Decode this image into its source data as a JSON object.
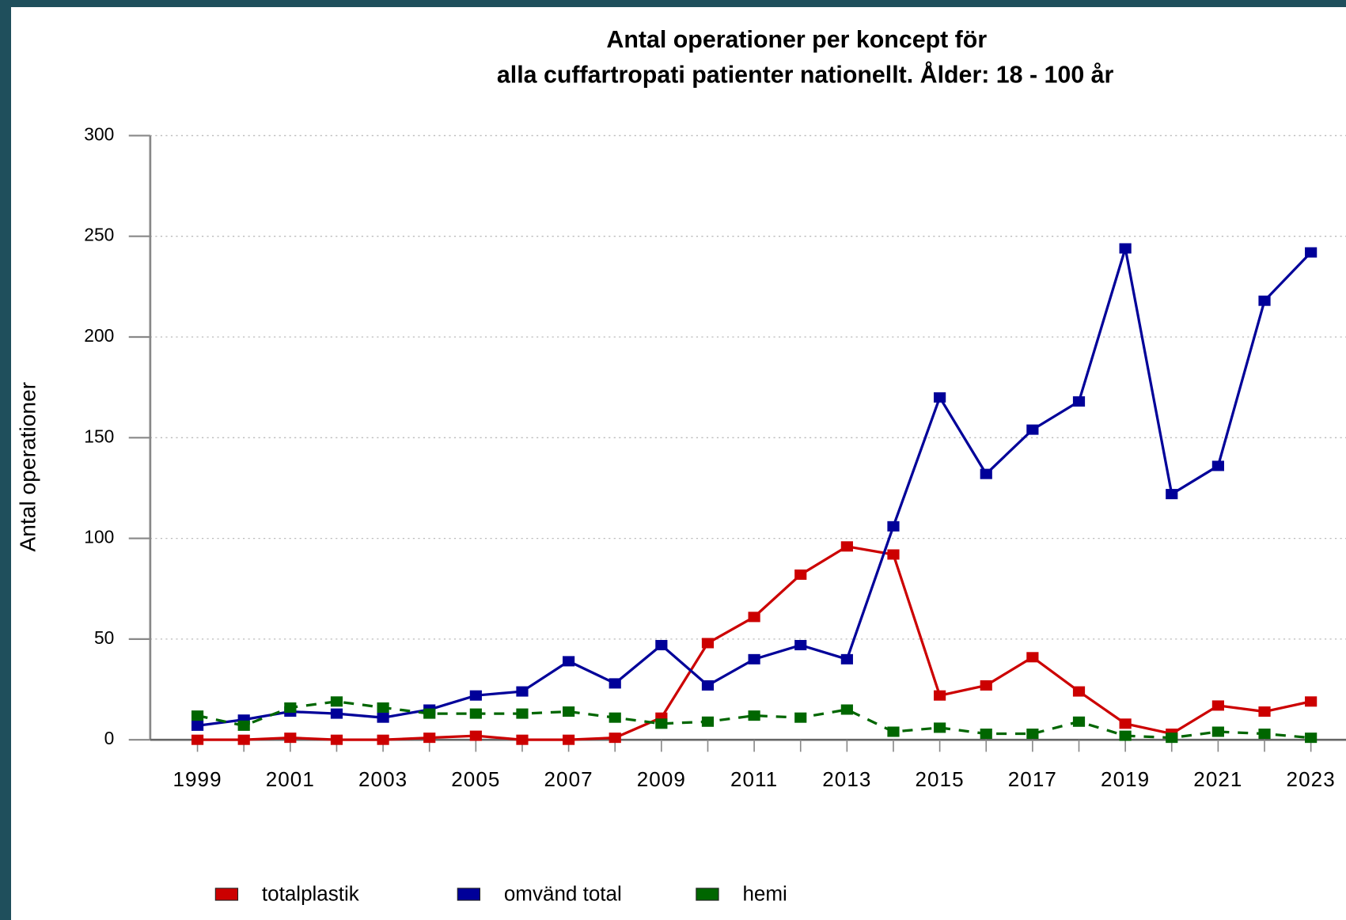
{
  "chart_data": {
    "type": "line",
    "title": "Antal operationer per koncept för",
    "subtitle": "alla cuffartropati patienter nationellt. Ålder: 18 - 100 år",
    "y_label": "Antal operationer",
    "x": [
      1999,
      2000,
      2001,
      2002,
      2003,
      2004,
      2005,
      2006,
      2007,
      2008,
      2009,
      2010,
      2011,
      2012,
      2013,
      2014,
      2015,
      2016,
      2017,
      2018,
      2019,
      2020,
      2021,
      2022,
      2023
    ],
    "series": [
      {
        "name": "totalplastik",
        "color": "#cc0000",
        "values": [
          0,
          0,
          1,
          0,
          0,
          1,
          2,
          0,
          0,
          1,
          11,
          48,
          61,
          82,
          96,
          92,
          22,
          27,
          41,
          24,
          8,
          3,
          17,
          14,
          19
        ]
      },
      {
        "name": "omvänd total",
        "color": "#000099",
        "values": [
          7,
          10,
          14,
          13,
          11,
          15,
          22,
          24,
          39,
          28,
          47,
          27,
          40,
          47,
          40,
          106,
          170,
          132,
          154,
          168,
          244,
          122,
          136,
          218,
          242
        ]
      },
      {
        "name": "hemi",
        "color": "#006600",
        "values": [
          12,
          7,
          16,
          19,
          16,
          13,
          13,
          13,
          14,
          11,
          8,
          9,
          12,
          11,
          15,
          4,
          6,
          3,
          3,
          9,
          2,
          1,
          4,
          3,
          1
        ]
      }
    ],
    "xlim": [
      1998,
      2024
    ],
    "xticks": [
      1999,
      2001,
      2003,
      2005,
      2007,
      2009,
      2011,
      2013,
      2015,
      2017,
      2019,
      2021,
      2023
    ],
    "ylim": [
      0,
      300
    ],
    "yticks": [
      0,
      50,
      100,
      150,
      200,
      250,
      300
    ],
    "grid": true,
    "legend": "bottom"
  }
}
